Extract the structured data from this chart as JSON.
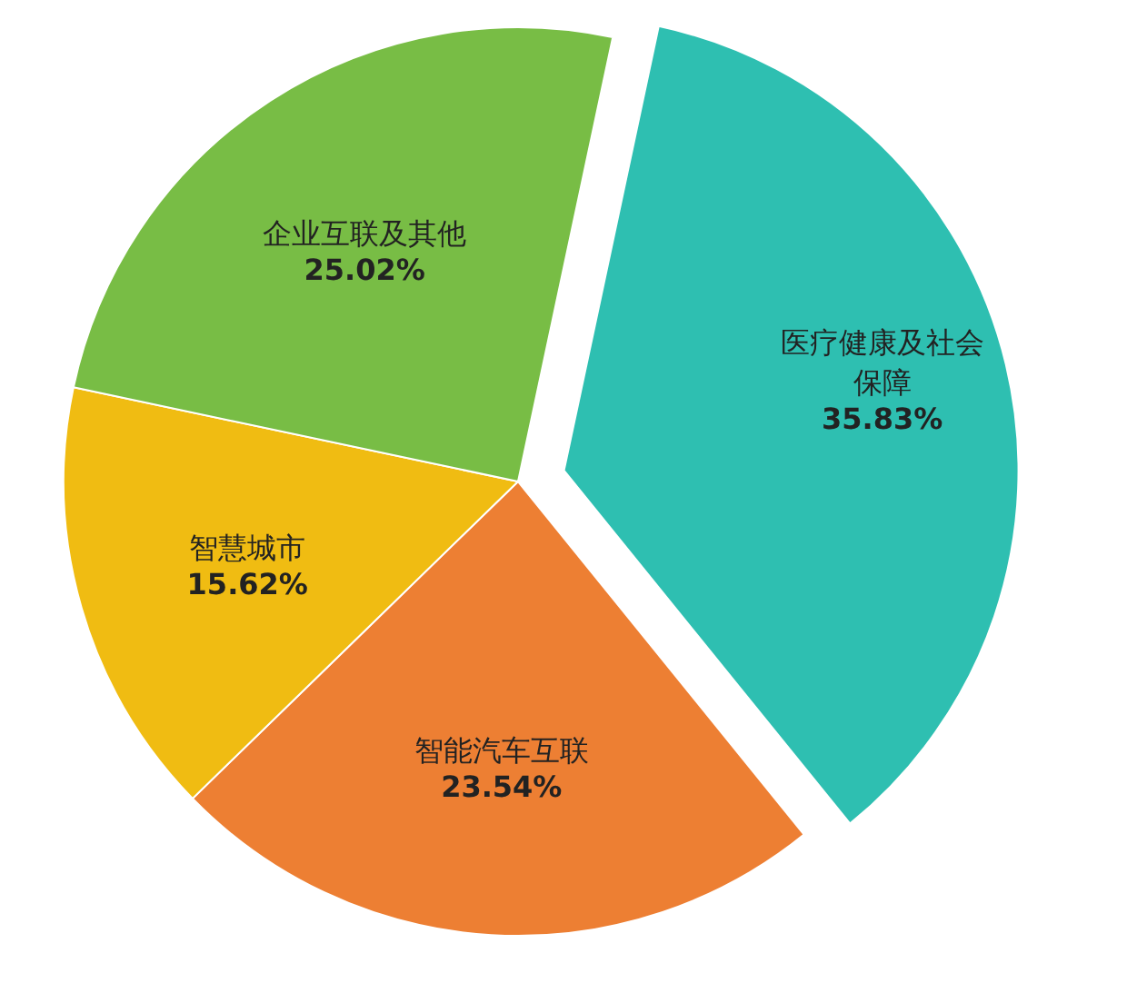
{
  "chart_data": {
    "type": "pie",
    "categories": [
      "医疗健康及社会保障",
      "智能汽车互联",
      "智慧城市",
      "企业互联及其他"
    ],
    "values": [
      35.83,
      23.54,
      15.62,
      25.02
    ],
    "value_labels": [
      "35.83%",
      "23.54%",
      "15.62%",
      "25.02%"
    ],
    "colors": [
      "#2ebfb1",
      "#ed7f33",
      "#f0bc12",
      "#78bd45"
    ]
  }
}
